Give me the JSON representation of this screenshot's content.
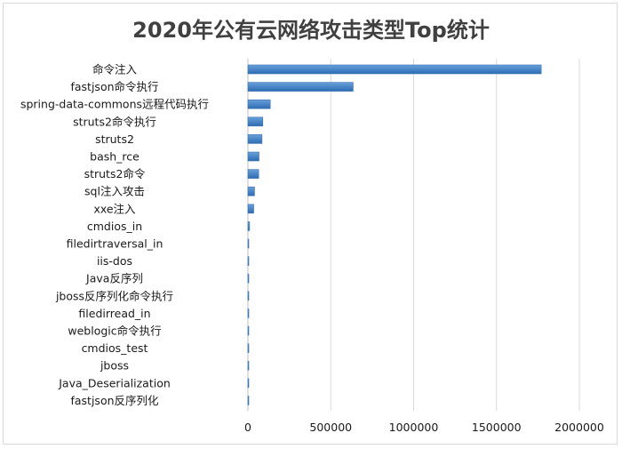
{
  "chart_data": {
    "type": "bar",
    "orientation": "horizontal",
    "title": "2020年公有云网络攻击类型Top统计",
    "categories": [
      "命令注入",
      "fastjson命令执行",
      "spring-data-commons远程代码执行",
      "struts2命令执行",
      "struts2",
      "bash_rce",
      "struts2命令",
      "sql注入攻击",
      "xxe注入",
      "cmdios_in",
      "filedirtraversal_in",
      "iis-dos",
      "Java反序列",
      "jboss反序列化命令执行",
      "filedirread_in",
      "weblogic命令执行",
      "cmdios_test",
      "jboss",
      "Java_Deserialization",
      "fastjson反序列化"
    ],
    "values": [
      1770000,
      635000,
      135000,
      90000,
      85000,
      67000,
      65000,
      40000,
      35000,
      10000,
      5000,
      4000,
      3500,
      3000,
      2500,
      2000,
      1500,
      1200,
      1000,
      800
    ],
    "xlim": [
      0,
      2000000
    ],
    "xticks": [
      0,
      500000,
      1000000,
      1500000,
      2000000
    ],
    "xtick_labels": [
      "0",
      "500000",
      "1000000",
      "1500000",
      "2000000"
    ],
    "grid": "vertical",
    "legend": "none",
    "bar_color": "#4a86c8"
  }
}
